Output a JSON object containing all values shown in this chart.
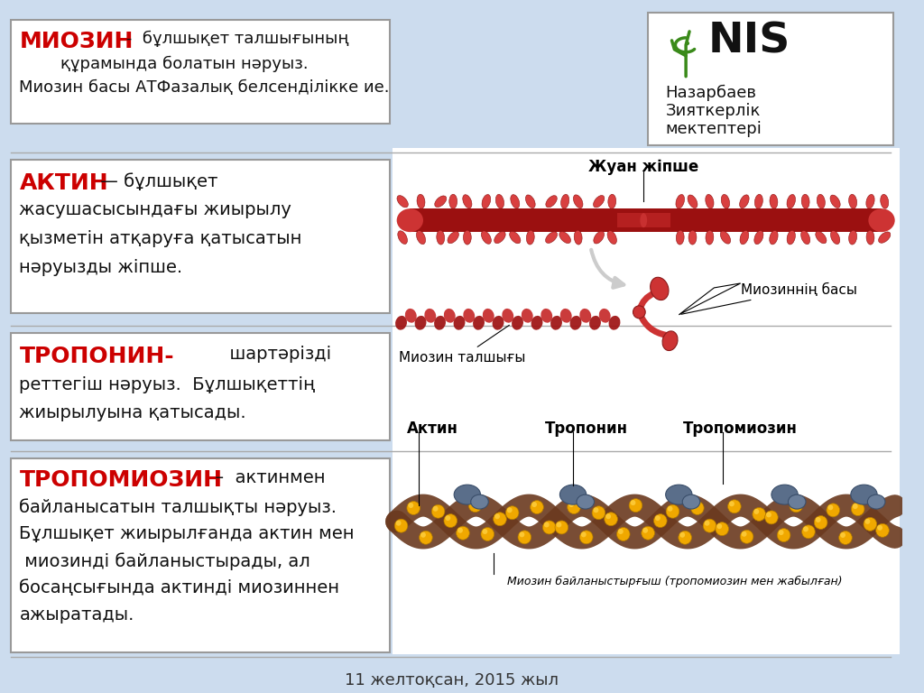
{
  "bg_color": "#ccdcee",
  "white_box_bg": "#ffffff",
  "border_color": "#999999",
  "red_color": "#cc0000",
  "black_color": "#111111",
  "footer_text": "11 желтоқсан, 2015 жыл",
  "box1_title": "МИОЗИН",
  "box1_rest": " -  бұлшықет талшығының\n        құрамында болатын нәруыз.\nМиозин басы АТФазалық белсенділікке ие.",
  "box2_title": "АКТИН",
  "box2_rest": " — бұлшықет\nжасушасысындағы жиырылу\nқызметін атқаруға қатысатын\nнәруызды жіпше.",
  "box3_title": "ТРОПОНИН-",
  "box3_rest": "      шартәрізді\nреттегіш нәруыз.  Бұлшықеттің\nжиырылуына қатысады.",
  "box4_title": "ТРОПОМИОЗИН",
  "box4_rest": " –  актинмен\nбайланысатын талшықты нәруыз.\nБұлшықет жиырылғанда актин мен\n миозинді байланыстырады, ал\nбосаңсығында актинді миозиннен\nажыратады.",
  "label_zhuan": "Жуан жіпше",
  "label_myosin_fiber": "Миозин талшығы",
  "label_myosin_head": "Миозиннің басы",
  "label_actin": "Актин",
  "label_troponin": "Тропонин",
  "label_tropomyosin": "Тропомиозин",
  "label_myosin_bridge": "Миозин байланыстырғыш (тропомиозин мен жабылған)",
  "nis_line1": "Назарбаев",
  "nis_line2": "Зияткерлік",
  "nis_line3": "мектептері"
}
